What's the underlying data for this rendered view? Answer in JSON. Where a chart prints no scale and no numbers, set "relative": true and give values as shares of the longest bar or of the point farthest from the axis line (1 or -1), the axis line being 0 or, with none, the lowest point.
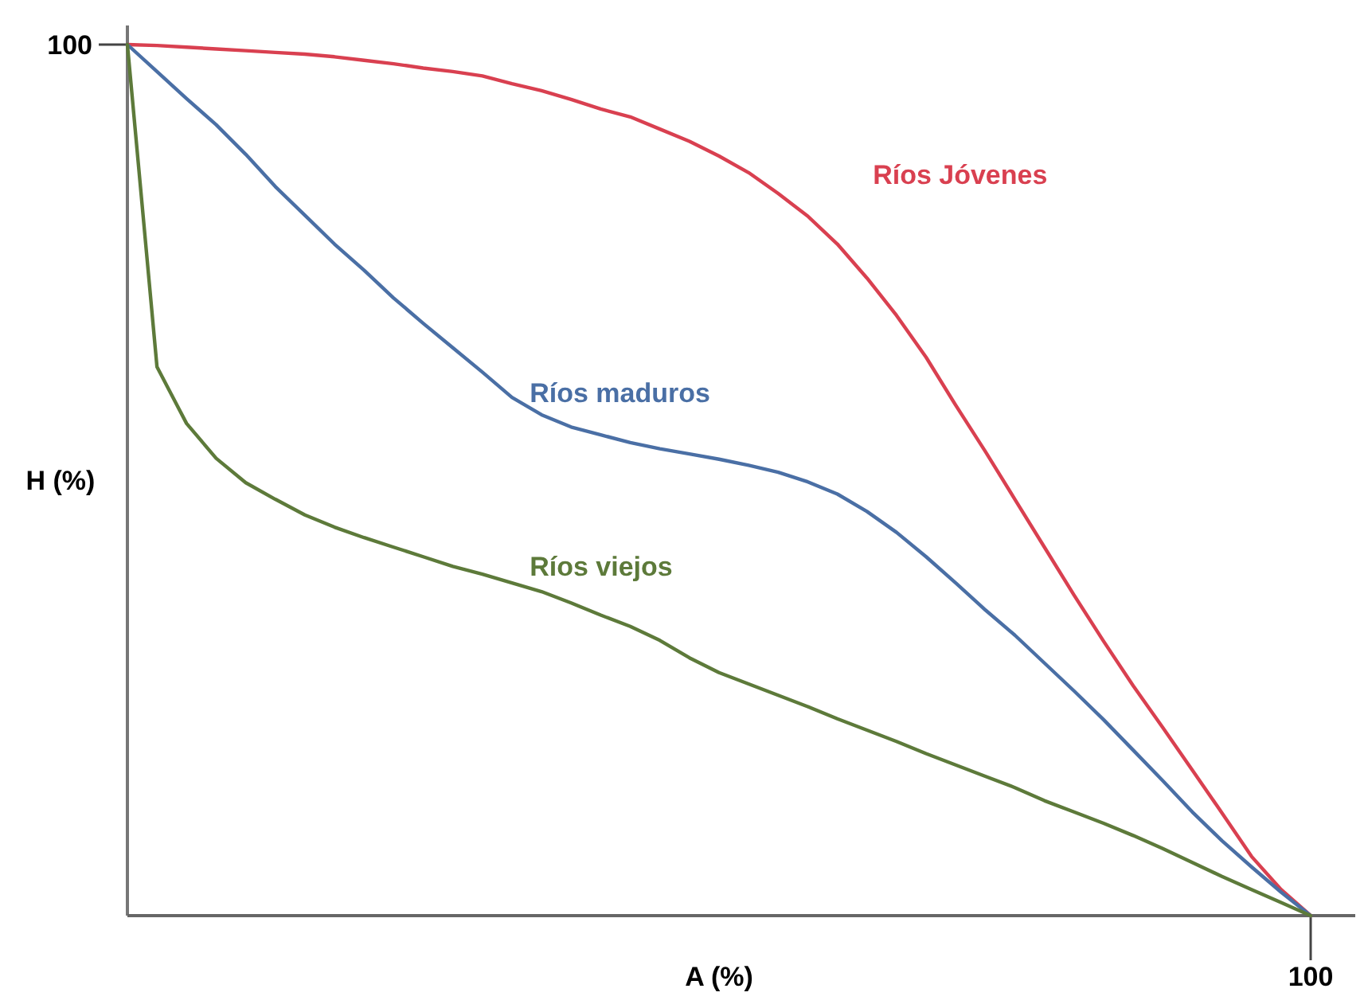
{
  "chart_data": {
    "type": "line",
    "relative": true,
    "xlabel": "A (%)",
    "ylabel": "H (%)",
    "annotations": [
      "100",
      "100"
    ],
    "marker": "none",
    "line_style": "solid",
    "categories": [
      null,
      null,
      null,
      null,
      null,
      null,
      null,
      null,
      null,
      null,
      null,
      null,
      null,
      null,
      null,
      null,
      null,
      null,
      null,
      null,
      null,
      null,
      null,
      null,
      null,
      null,
      null,
      null,
      null,
      null,
      null,
      null,
      null,
      null,
      null,
      null,
      null,
      null,
      null,
      null,
      null
    ],
    "series": [
      {
        "name": "Ríos Jóvenes",
        "color": "#d94050",
        "values": [
          1,
          0.999,
          0.997,
          0.995,
          0.993,
          0.991,
          0.989,
          0.986,
          0.982,
          0.978,
          0.973,
          0.969,
          0.964,
          0.955,
          0.947,
          0.937,
          0.926,
          0.917,
          0.903,
          0.889,
          0.872,
          0.853,
          0.829,
          0.803,
          0.771,
          0.732,
          0.689,
          0.641,
          0.586,
          0.533,
          0.478,
          0.423,
          0.368,
          0.315,
          0.264,
          0.216,
          0.167,
          0.118,
          0.068,
          0.03,
          0
        ]
      },
      {
        "name": "Ríos maduros",
        "color": "#4a6fa5",
        "values": [
          1,
          0.969,
          0.938,
          0.908,
          0.874,
          0.837,
          0.804,
          0.771,
          0.741,
          0.709,
          0.68,
          0.652,
          0.624,
          0.595,
          0.575,
          0.561,
          0.552,
          0.543,
          0.536,
          0.53,
          0.524,
          0.517,
          0.509,
          0.498,
          0.484,
          0.464,
          0.44,
          0.412,
          0.382,
          0.351,
          0.322,
          0.29,
          0.258,
          0.225,
          0.19,
          0.155,
          0.119,
          0.086,
          0.056,
          0.027,
          0
        ]
      },
      {
        "name": "Ríos viejos",
        "color": "#5d7a3a",
        "values": [
          1,
          0.63,
          0.565,
          0.525,
          0.497,
          0.478,
          0.46,
          0.446,
          0.434,
          0.423,
          0.412,
          0.401,
          0.392,
          0.382,
          0.372,
          0.359,
          0.345,
          0.332,
          0.316,
          0.296,
          0.279,
          0.266,
          0.253,
          0.24,
          0.226,
          0.213,
          0.2,
          0.186,
          0.173,
          0.16,
          0.147,
          0.132,
          0.119,
          0.106,
          0.092,
          0.077,
          0.061,
          0.045,
          0.03,
          0.015,
          0
        ]
      }
    ]
  }
}
